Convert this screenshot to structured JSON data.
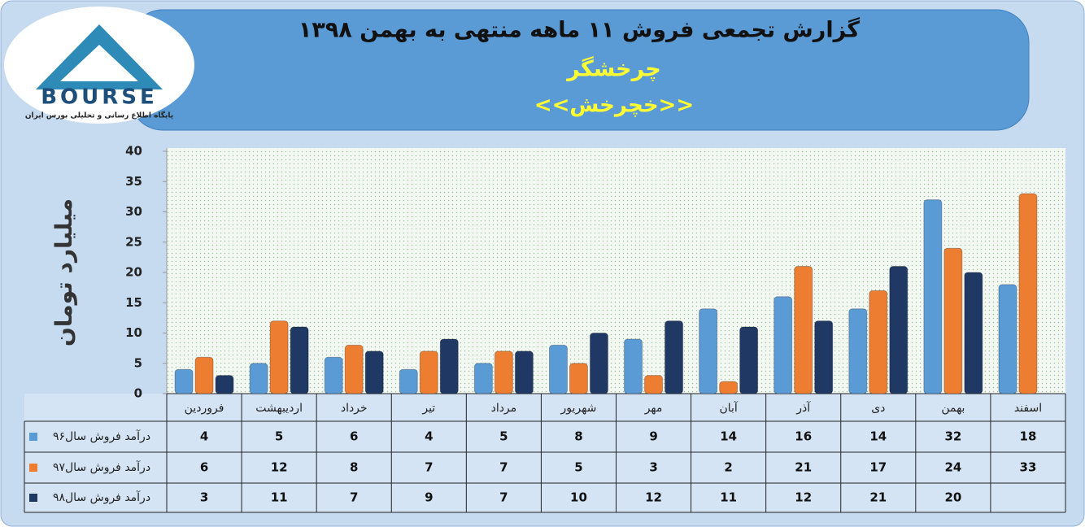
{
  "logo": {
    "name": "BOURSE",
    "tagline": "پایگاه اطلاع رسانی و تحلیلی بورس ایران"
  },
  "chart_data": {
    "type": "bar",
    "title": "گزارش تجمعی فروش  ۱۱ ماهه منتهی به بهمن ۱۳۹۸",
    "subtitle": "چرخشگر",
    "symbol": "<<خچرخش>>",
    "y_label": "میلیارد تومان",
    "categories": [
      "فروردین",
      "اردیبهشت",
      "خرداد",
      "تیر",
      "مرداد",
      "شهریور",
      "مهر",
      "آبان",
      "آذر",
      "دی",
      "بهمن",
      "اسفند"
    ],
    "series": [
      {
        "name": "درآمد فروش سال۹۶",
        "color": "#5b9bd5",
        "values": [
          4,
          5,
          6,
          4,
          5,
          8,
          9,
          14,
          16,
          14,
          32,
          18
        ]
      },
      {
        "name": "درآمد فروش سال۹۷",
        "color": "#ed7d31",
        "values": [
          6,
          12,
          8,
          7,
          7,
          5,
          3,
          2,
          21,
          17,
          24,
          33
        ]
      },
      {
        "name": "درآمد فروش سال۹۸",
        "color": "#203864",
        "values": [
          3,
          11,
          7,
          9,
          7,
          10,
          12,
          11,
          12,
          21,
          20,
          null
        ]
      }
    ],
    "ylim": [
      0,
      40
    ],
    "yticks": [
      0,
      5,
      10,
      15,
      20,
      25,
      30,
      35,
      40
    ],
    "grid": false
  }
}
